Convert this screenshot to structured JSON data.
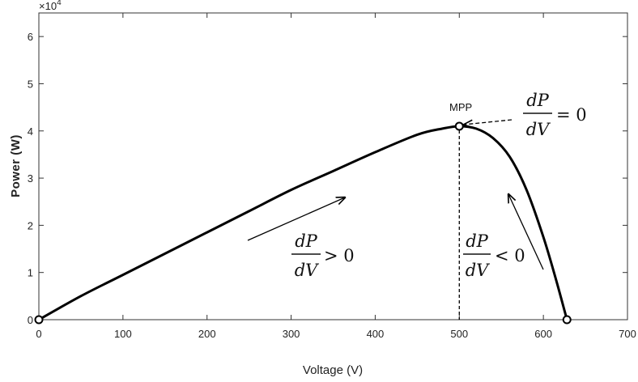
{
  "chart_data": {
    "type": "line",
    "title": "",
    "xlabel": "Voltage (V)",
    "ylabel": "Power (W)",
    "xlim": [
      0,
      700
    ],
    "ylim": [
      0,
      6.5
    ],
    "y_multiplier": "×10",
    "y_multiplier_exp": "4",
    "x_ticks": [
      0,
      100,
      200,
      300,
      400,
      500,
      600,
      700
    ],
    "y_ticks": [
      0,
      1,
      2,
      3,
      4,
      5,
      6
    ],
    "grid": false,
    "series": [
      {
        "x": [
          0,
          50,
          100,
          150,
          200,
          250,
          300,
          350,
          400,
          450,
          480,
          500,
          520,
          540,
          560,
          580,
          600,
          615,
          628
        ],
        "y": [
          0,
          0.5,
          0.95,
          1.4,
          1.85,
          2.3,
          2.75,
          3.15,
          3.55,
          3.92,
          4.05,
          4.1,
          4.05,
          3.85,
          3.45,
          2.75,
          1.75,
          0.85,
          0
        ]
      }
    ],
    "markers": [
      {
        "x": 0,
        "y": 0
      },
      {
        "x": 500,
        "y": 4.1
      },
      {
        "x": 628,
        "y": 0
      }
    ],
    "annotations": {
      "mpp_label": "MPP",
      "left_fraction": {
        "num": "dP",
        "den": "dV",
        "relation": "> 0"
      },
      "right_fraction": {
        "num": "dP",
        "den": "dV",
        "relation": "< 0"
      },
      "top_fraction": {
        "num": "dP",
        "den": "dV",
        "relation": "= 0"
      }
    }
  }
}
